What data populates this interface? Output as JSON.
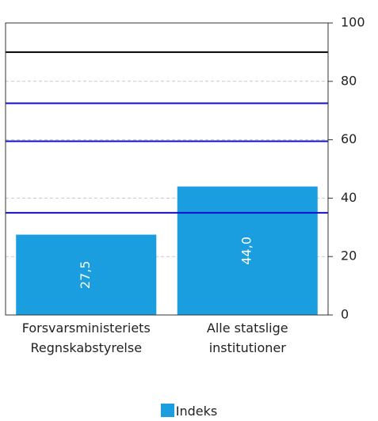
{
  "chart_data": {
    "type": "bar",
    "categories": [
      "Forsvarsministeriets Regnskabstyrelse",
      "Alle statslige institutioner"
    ],
    "series": [
      {
        "name": "Indeks",
        "color": "#1a9ee0",
        "values": [
          27.5,
          44.0
        ],
        "value_labels": [
          "27,5",
          "44,0"
        ]
      }
    ],
    "ylim": [
      0,
      100
    ],
    "yticks": [
      0,
      20,
      40,
      60,
      80,
      100
    ],
    "grid": true,
    "reference_lines": [
      {
        "value": 90,
        "color": "#000000"
      },
      {
        "value": 72.5,
        "color": "#1010c8"
      },
      {
        "value": 59.5,
        "color": "#1010c8"
      },
      {
        "value": 35,
        "color": "#1010c8"
      }
    ],
    "legend": "bottom"
  }
}
